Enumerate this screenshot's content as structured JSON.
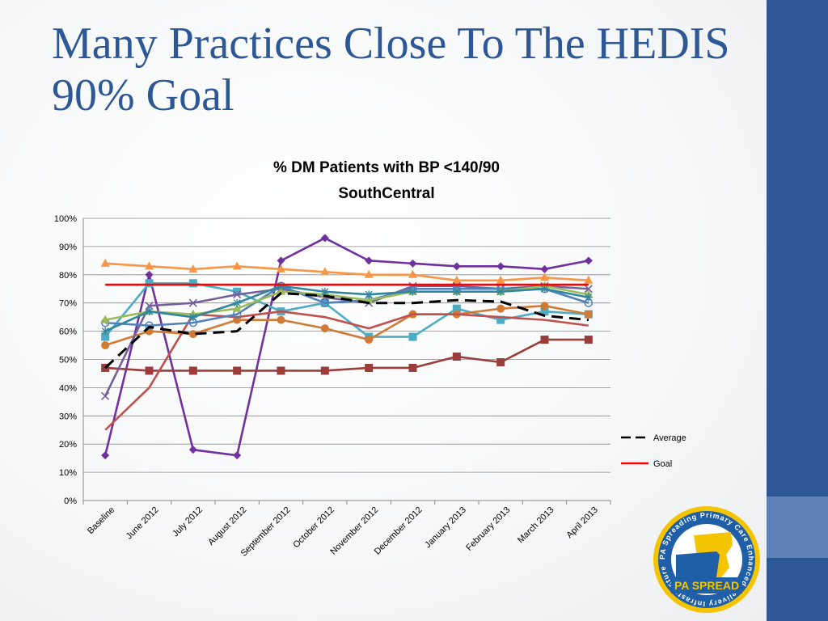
{
  "slide": {
    "title": "Many Practices Close To The HEDIS 90% Goal",
    "accent_color": "#2e5895"
  },
  "logo": {
    "ring_text": "PA Spreading Primary Care Enhanced Delivery Infrastructure",
    "label": "PA SPREAD"
  },
  "chart_data": {
    "type": "line",
    "title": "% DM Patients with BP <140/90",
    "subtitle": "SouthCentral",
    "xlabel": "",
    "ylabel": "",
    "ylim": [
      0,
      100
    ],
    "y_ticks": [
      "0%",
      "10%",
      "20%",
      "30%",
      "40%",
      "50%",
      "60%",
      "70%",
      "80%",
      "90%",
      "100%"
    ],
    "categories": [
      "Baseline",
      "June 2012",
      "July 2012",
      "August 2012",
      "September 2012",
      "October 2012",
      "November 2012",
      "December 2012",
      "January 2013",
      "February 2013",
      "March 2013",
      "April 2013"
    ],
    "grid": true,
    "legend_position": "right",
    "series": [
      {
        "name": "",
        "color": "#7030a0",
        "marker": "diamond",
        "values": [
          16,
          80,
          18,
          16,
          85,
          93,
          85,
          84,
          83,
          83,
          82,
          85
        ]
      },
      {
        "name": "",
        "color": "#f79646",
        "marker": "triangle",
        "values": [
          84,
          83,
          82,
          83,
          82,
          81,
          80,
          80,
          78,
          78,
          79,
          78
        ]
      },
      {
        "name": "",
        "color": "#4bacc6",
        "marker": "square",
        "values": [
          58,
          77,
          77,
          74,
          67,
          70,
          58,
          58,
          68,
          64,
          67,
          66
        ]
      },
      {
        "name": "",
        "color": "#d07a35",
        "marker": "circle",
        "values": [
          55,
          60,
          59,
          64,
          64,
          61,
          57,
          66,
          66,
          68,
          69,
          66
        ]
      },
      {
        "name": "",
        "color": "#9b3e3b",
        "marker": "square",
        "values": [
          47,
          46,
          46,
          46,
          46,
          46,
          47,
          47,
          51,
          49,
          57,
          57
        ]
      },
      {
        "name": "",
        "color": "#c0504d",
        "marker": "none",
        "values": [
          25,
          40,
          66,
          65,
          67,
          65,
          61,
          66,
          66,
          65,
          64,
          62
        ]
      },
      {
        "name": "",
        "color": "#76609a",
        "marker": "x",
        "values": [
          37,
          69,
          70,
          73,
          75,
          72,
          70,
          76,
          76,
          75,
          76,
          75
        ]
      },
      {
        "name": "",
        "color": "#4f81bd",
        "marker": "circle-open",
        "values": [
          63,
          62,
          63,
          66,
          76,
          70,
          71,
          75,
          75,
          75,
          75,
          70
        ]
      },
      {
        "name": "",
        "color": "#9bbb59",
        "marker": "triangle",
        "values": [
          64,
          67,
          66,
          68,
          74,
          73,
          71,
          74,
          74,
          74,
          76,
          73
        ]
      },
      {
        "name": "",
        "color": "#31859c",
        "marker": "star",
        "values": [
          60,
          67,
          65,
          70,
          76,
          74,
          73,
          74,
          74,
          74,
          75,
          72
        ]
      },
      {
        "name": "Average",
        "color": "#000000",
        "marker": "none",
        "dash": true,
        "values": [
          47,
          61.5,
          59,
          60,
          73.5,
          72.5,
          70,
          70,
          71,
          70.5,
          65.5,
          64
        ]
      },
      {
        "name": "Goal",
        "color": "#ff0000",
        "marker": "none",
        "values": [
          76.5,
          76.5,
          76.5,
          76.5,
          76.5,
          76.5,
          76.5,
          76.5,
          76.5,
          76.5,
          76.5,
          76.5
        ]
      }
    ]
  }
}
